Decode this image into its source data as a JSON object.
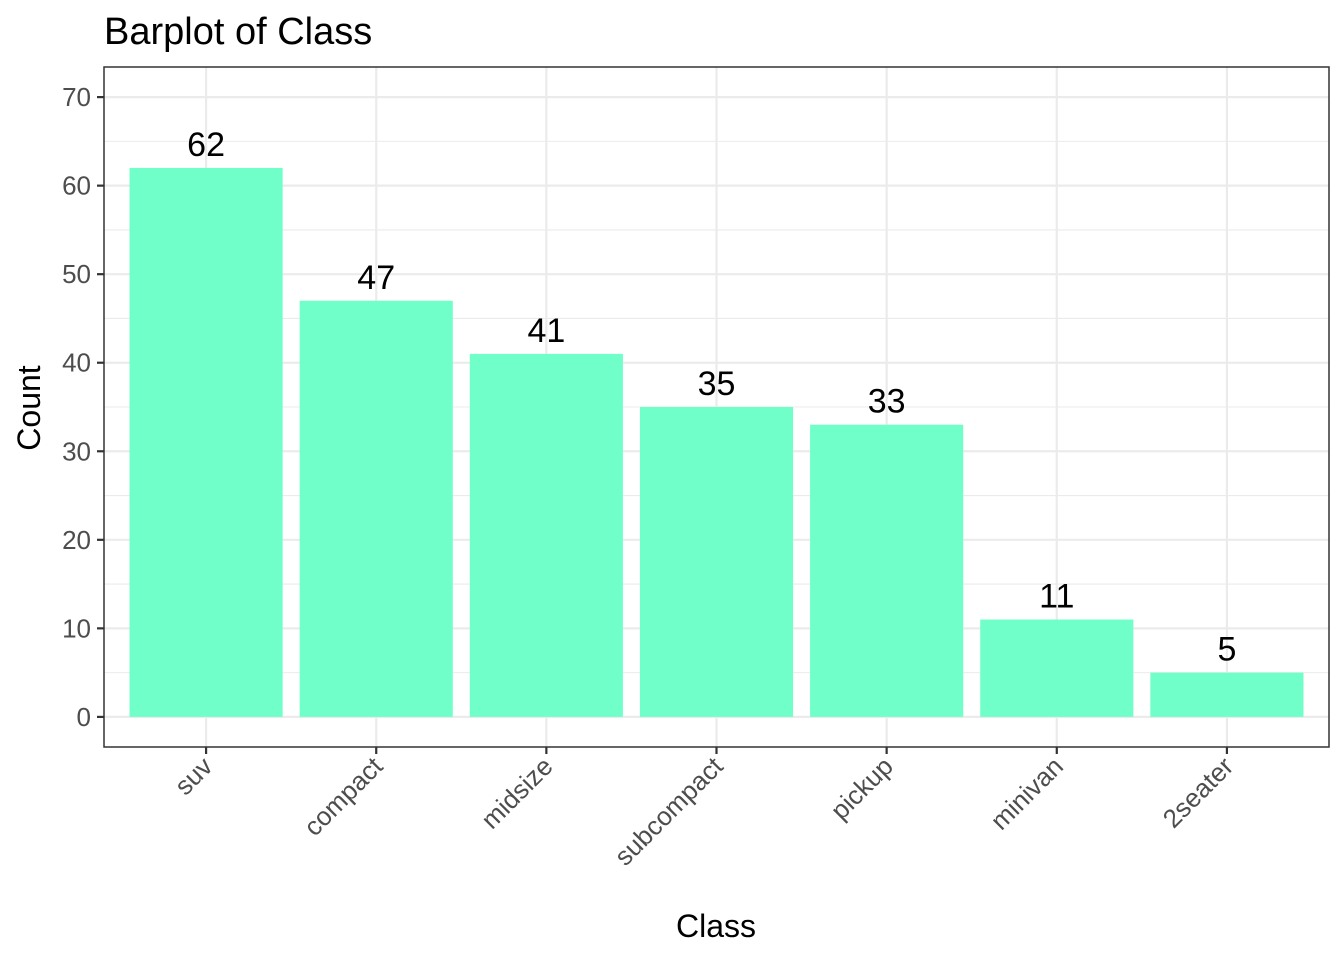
{
  "chart_data": {
    "type": "bar",
    "title": "Barplot of Class",
    "xlabel": "Class",
    "ylabel": "Count",
    "categories": [
      "suv",
      "compact",
      "midsize",
      "subcompact",
      "pickup",
      "minivan",
      "2seater"
    ],
    "values": [
      62,
      47,
      41,
      35,
      33,
      11,
      5
    ],
    "data_labels": [
      "62",
      "47",
      "41",
      "35",
      "33",
      "11",
      "5"
    ],
    "y_ticks": [
      0,
      10,
      20,
      30,
      40,
      50,
      60,
      70
    ],
    "y_tick_labels": [
      "0",
      "10",
      "20",
      "30",
      "40",
      "50",
      "60",
      "70"
    ],
    "ylim": [
      -3.4,
      73.4
    ],
    "grid": true,
    "bar_color": "#70FFC9",
    "x_tick_rotation": "45 degrees"
  }
}
